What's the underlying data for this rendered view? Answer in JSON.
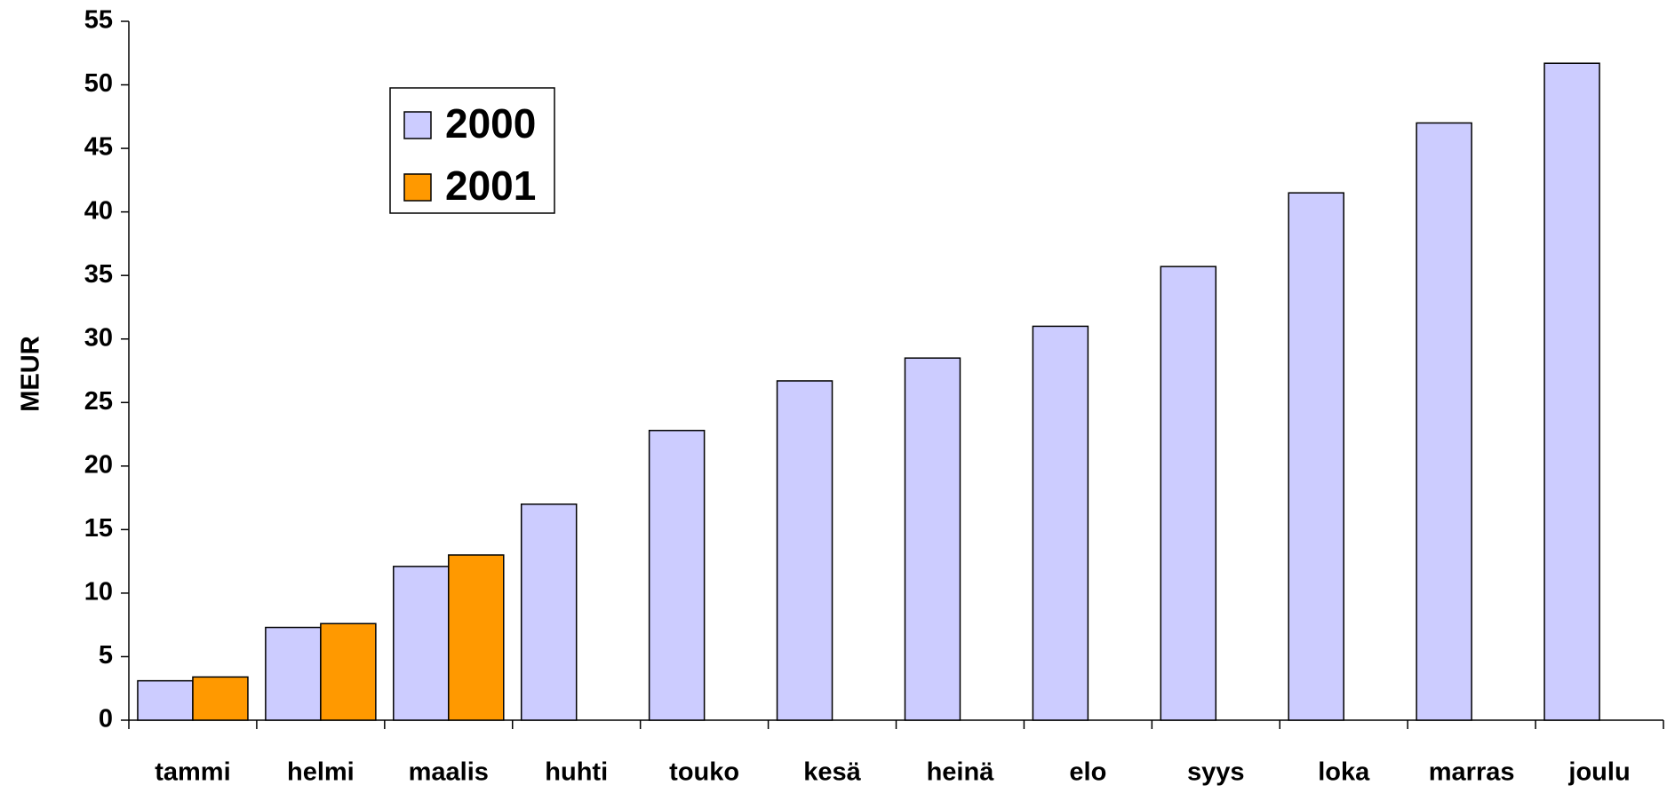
{
  "chart_data": {
    "type": "bar",
    "y_label": "MEUR",
    "categories": [
      "tammi",
      "helmi",
      "maalis",
      "huhti",
      "touko",
      "kesä",
      "heinä",
      "elo",
      "syys",
      "loka",
      "marras",
      "joulu"
    ],
    "series": [
      {
        "name": "2000",
        "color": "#ccccff",
        "values": [
          3.1,
          7.3,
          12.1,
          17.0,
          22.8,
          26.7,
          28.5,
          31.0,
          35.7,
          41.5,
          47.0,
          51.7
        ]
      },
      {
        "name": "2001",
        "color": "#ff9900",
        "values": [
          3.4,
          7.6,
          13.0,
          null,
          null,
          null,
          null,
          null,
          null,
          null,
          null,
          null
        ]
      }
    ],
    "ylim": [
      0,
      55
    ],
    "yticks": [
      0,
      5,
      10,
      15,
      20,
      25,
      30,
      35,
      40,
      45,
      50,
      55
    ],
    "grid": false,
    "legend": "upper left"
  }
}
